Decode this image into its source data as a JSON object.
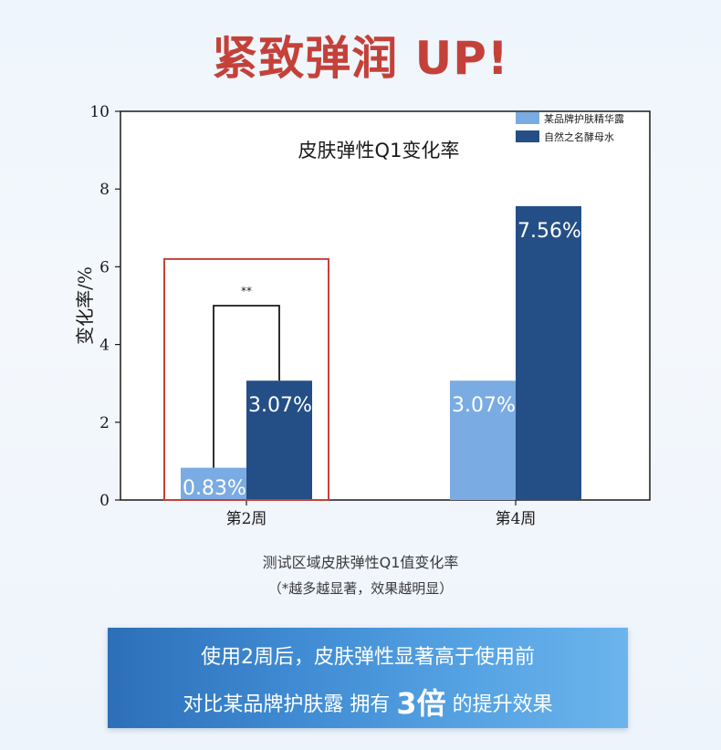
{
  "headline": "紧致弹润 UP!",
  "chart_data": {
    "type": "bar",
    "title": "皮肤弹性Q1变化率",
    "ylabel": "变化率/%",
    "xlabel": "",
    "ylim": [
      0,
      10
    ],
    "yticks": [
      "0",
      "2",
      "4",
      "6",
      "8",
      "10"
    ],
    "categories": [
      "第2周",
      "第4周"
    ],
    "series": [
      {
        "name": "某品牌护肤精华露",
        "color": "#7aabe2",
        "values": [
          0.83,
          3.07
        ],
        "labels": [
          "0.83%",
          "3.07%"
        ]
      },
      {
        "name": "自然之名酵母水",
        "color": "#244f86",
        "values": [
          3.07,
          7.56
        ],
        "labels": [
          "3.07%",
          "7.56%"
        ]
      }
    ],
    "significance": "**",
    "legend_position": "top-right",
    "highlight_category": "第2周",
    "highlight_color": "#c4413a"
  },
  "caption": {
    "line1": "测试区域皮肤弹性Q1值变化率",
    "line2": "（*越多越显著，效果越明显）"
  },
  "banner": {
    "line1": "使用2周后，皮肤弹性显著高于使用前",
    "line2_prefix": "对比某品牌护肤露 拥有 ",
    "line2_emph": "3倍",
    "line2_suffix": " 的提升效果"
  }
}
